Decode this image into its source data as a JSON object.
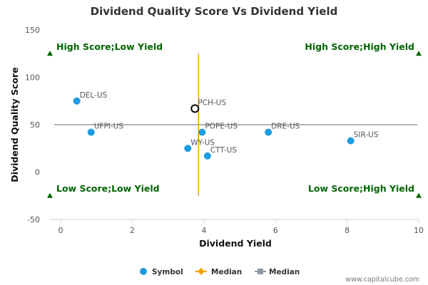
{
  "chart_data": {
    "type": "scatter",
    "title": "Dividend Quality Score Vs Dividend Yield",
    "xlabel": "Dividend Yield",
    "ylabel": "Dividend Quality Score",
    "xlim": [
      -0.3,
      10
    ],
    "ylim": [
      -50,
      150
    ],
    "xticks": [
      "0",
      "2",
      "4",
      "6",
      "8",
      "10"
    ],
    "xtick_values": [
      0,
      2,
      4,
      6,
      8,
      10
    ],
    "yticks": [
      "150",
      "100",
      "50",
      "0",
      "-50"
    ],
    "ytick_values": [
      150,
      100,
      50,
      0,
      -50
    ],
    "points": [
      {
        "label": "DEL-US",
        "x": 0.45,
        "y": 75
      },
      {
        "label": "UFPI-US",
        "x": 0.85,
        "y": 42
      },
      {
        "label": "WY-US",
        "x": 3.55,
        "y": 25
      },
      {
        "label": "POPE-US",
        "x": 3.95,
        "y": 42
      },
      {
        "label": "CTT-US",
        "x": 4.1,
        "y": 17
      },
      {
        "label": "DRE-US",
        "x": 5.8,
        "y": 42
      },
      {
        "label": "SIR-US",
        "x": 8.1,
        "y": 33
      }
    ],
    "highlight": {
      "label": "PCH-US",
      "x": 3.75,
      "y": 67
    },
    "median_x": 3.85,
    "median_y": 50,
    "median_x_range": [
      -25,
      125
    ],
    "quadrant_markers_y": [
      125,
      -25
    ],
    "quadrants": {
      "top_left": "High Score;Low Yield",
      "top_right": "High Score;High Yield",
      "bottom_left": "Low Score;Low Yield",
      "bottom_right": "Low Score;High Yield"
    },
    "legend": [
      {
        "name": "Symbol",
        "type": "dot"
      },
      {
        "name": "Median",
        "type": "diamond-line"
      },
      {
        "name": "Median",
        "type": "square-line"
      }
    ],
    "colors": {
      "points": "#1e9be3",
      "median_vertical": "#f0a30a",
      "median_horizontal": "#8f98a8",
      "quadrant_text": "#006400",
      "quadrant_marker": "#006400",
      "highlight_stroke": "#000000"
    }
  },
  "credit": "www.capitalcube.com"
}
